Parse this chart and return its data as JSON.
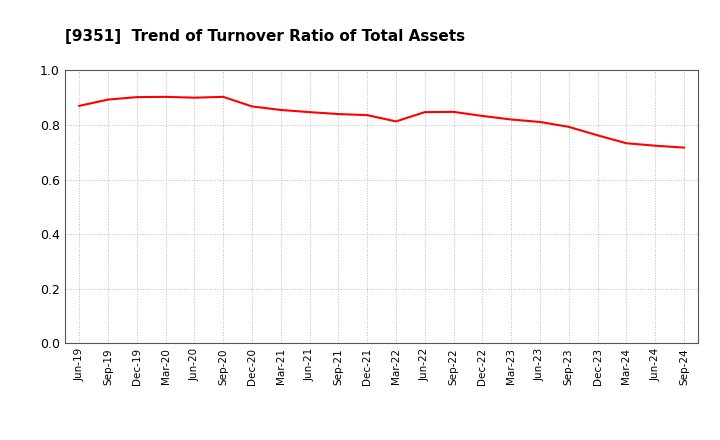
{
  "title": "[9351]  Trend of Turnover Ratio of Total Assets",
  "title_fontsize": 11,
  "line_color": "#ff0000",
  "line_width": 1.5,
  "background_color": "#ffffff",
  "grid_color": "#bbbbbb",
  "ylim": [
    0.0,
    1.0
  ],
  "yticks": [
    0.0,
    0.2,
    0.4,
    0.6,
    0.8,
    1.0
  ],
  "x_labels": [
    "Jun-19",
    "Sep-19",
    "Dec-19",
    "Mar-20",
    "Jun-20",
    "Sep-20",
    "Dec-20",
    "Mar-21",
    "Jun-21",
    "Sep-21",
    "Dec-21",
    "Mar-22",
    "Jun-22",
    "Sep-22",
    "Dec-22",
    "Mar-23",
    "Jun-23",
    "Sep-23",
    "Dec-23",
    "Mar-24",
    "Jun-24",
    "Sep-24"
  ],
  "values": [
    0.87,
    0.893,
    0.902,
    0.903,
    0.9,
    0.903,
    0.868,
    0.855,
    0.847,
    0.84,
    0.836,
    0.813,
    0.847,
    0.848,
    0.833,
    0.82,
    0.811,
    0.793,
    0.762,
    0.733,
    0.724,
    0.717
  ]
}
